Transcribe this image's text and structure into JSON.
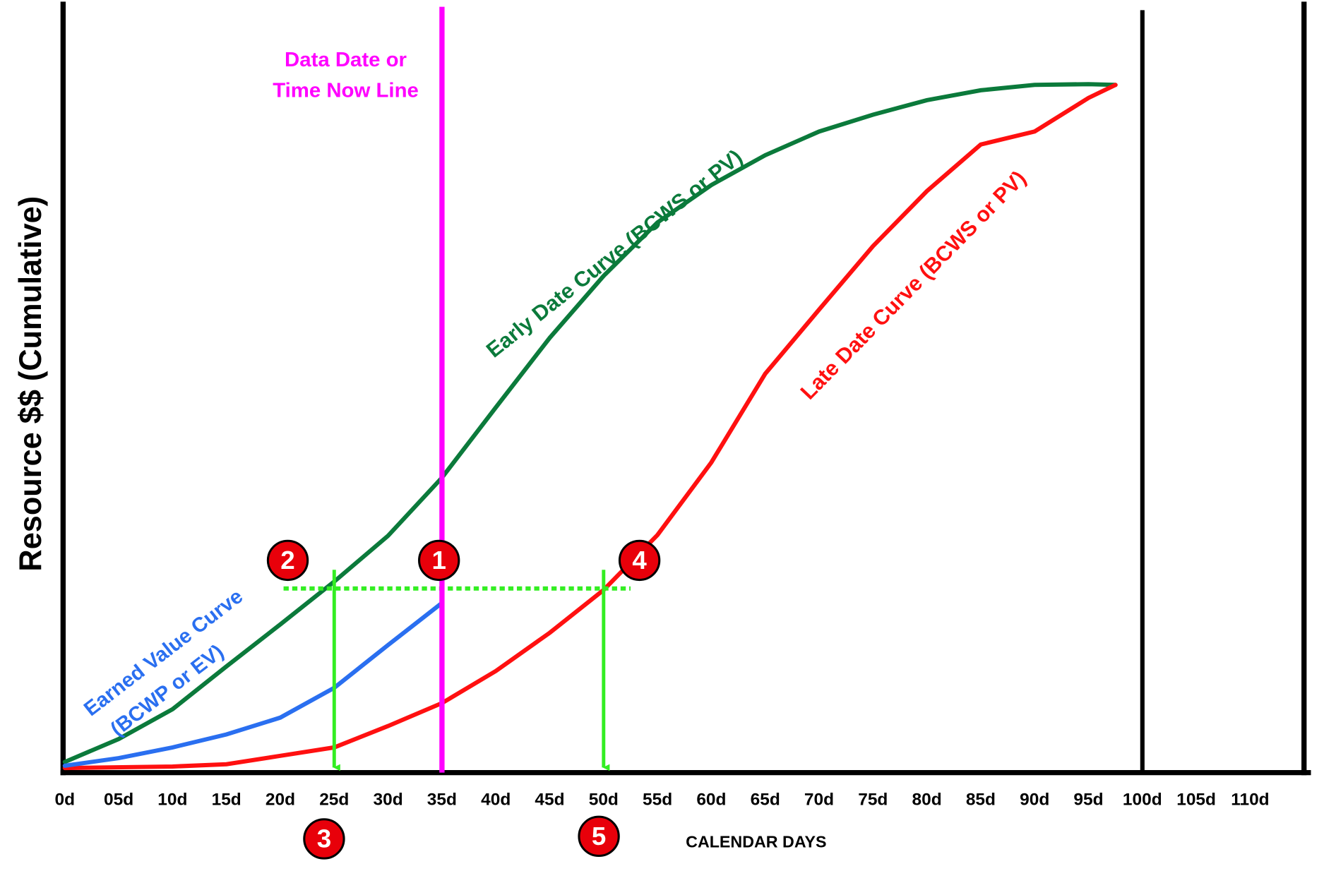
{
  "chart_data": {
    "type": "line",
    "y_label": "Resource $$ (Cumulative)",
    "x_label": "CALENDAR DAYS",
    "xlim": [
      0,
      115
    ],
    "ylim": [
      0,
      100
    ],
    "xticks": [
      {
        "value": 0,
        "label": "0d"
      },
      {
        "value": 5,
        "label": "05d"
      },
      {
        "value": 10,
        "label": "10d"
      },
      {
        "value": 15,
        "label": "15d"
      },
      {
        "value": 20,
        "label": "20d"
      },
      {
        "value": 25,
        "label": "25d"
      },
      {
        "value": 30,
        "label": "30d"
      },
      {
        "value": 35,
        "label": "35d"
      },
      {
        "value": 40,
        "label": "40d"
      },
      {
        "value": 45,
        "label": "45d"
      },
      {
        "value": 50,
        "label": "50d"
      },
      {
        "value": 55,
        "label": "55d"
      },
      {
        "value": 60,
        "label": "60d"
      },
      {
        "value": 65,
        "label": "65d"
      },
      {
        "value": 70,
        "label": "70d"
      },
      {
        "value": 75,
        "label": "75d"
      },
      {
        "value": 80,
        "label": "80d"
      },
      {
        "value": 85,
        "label": "85d"
      },
      {
        "value": 90,
        "label": "90d"
      },
      {
        "value": 95,
        "label": "95d"
      },
      {
        "value": 100,
        "label": "100d"
      },
      {
        "value": 105,
        "label": "105d"
      },
      {
        "value": 110,
        "label": "110d"
      }
    ],
    "series": [
      {
        "name": "Early Date Curve (BCWS or PV)",
        "color": "#0b7a3b",
        "x": [
          0,
          5,
          10,
          15,
          20,
          25,
          30,
          35,
          40,
          45,
          50,
          55,
          60,
          65,
          70,
          75,
          80,
          85,
          90,
          95,
          97.5
        ],
        "values": [
          1.4,
          4.4,
          8.3,
          13.9,
          19.4,
          25,
          31,
          38.6,
          47.8,
          56.9,
          65,
          72,
          76.9,
          80.8,
          83.9,
          86.1,
          88,
          89.3,
          90,
          90.1,
          90
        ]
      },
      {
        "name": "Late Date Curve (BCWS or PV)",
        "color": "#ff1010",
        "x": [
          0,
          10,
          15,
          20,
          25,
          30,
          35,
          40,
          45,
          50,
          55,
          60,
          65,
          70,
          75,
          80,
          85,
          90,
          95,
          97.5
        ],
        "values": [
          0.6,
          0.8,
          1.1,
          2.2,
          3.3,
          6.1,
          9.1,
          13.3,
          18.3,
          23.9,
          31.1,
          40.6,
          52.2,
          60.6,
          68.9,
          76.1,
          82.2,
          83.9,
          88.3,
          90
        ]
      },
      {
        "name_lines": [
          "Earned Value Curve",
          "(BCWP or EV)"
        ],
        "color": "#2a6ff0",
        "x": [
          0,
          5,
          10,
          15,
          20,
          25,
          30,
          35
        ],
        "values": [
          0.9,
          1.9,
          3.3,
          5,
          7.2,
          11.1,
          16.7,
          22.2
        ]
      }
    ],
    "data_date": {
      "value": 35,
      "label_lines": [
        "Data Date or",
        "Time Now Line"
      ],
      "color": "#ff00ff"
    },
    "guide": {
      "y": 24.1,
      "x": [
        20.3,
        52.5
      ],
      "color": "#33ee22"
    },
    "arrows_at": [
      25,
      50
    ],
    "callouts": [
      "1",
      "2",
      "3",
      "4",
      "5"
    ]
  }
}
